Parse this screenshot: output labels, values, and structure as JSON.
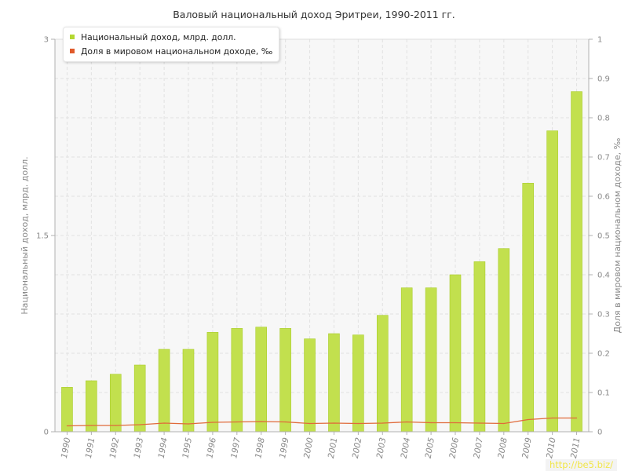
{
  "page": {
    "title": "Валовый национальный доход Эритреи, 1990-2011 гг.",
    "watermark": "http://be5.biz/"
  },
  "legend": [
    {
      "label": "Национальный доход, млрд. долл.",
      "color": "#b4d832"
    },
    {
      "label": "Доля в мировом национальном доходе, ‰",
      "color": "#e05a2b"
    }
  ],
  "colors": {
    "bar": "#c2e04e",
    "bar_edge": "#aacd2a",
    "line": "#e06a3a",
    "plot_bg": "#f7f7f7",
    "grid": "#e2e2e2"
  },
  "chart_data": {
    "type": "bar",
    "title": "Валовый национальный доход Эритреи, 1990-2011 гг.",
    "categories": [
      "1990",
      "1991",
      "1992",
      "1993",
      "1994",
      "1995",
      "1996",
      "1997",
      "1998",
      "1999",
      "2000",
      "2001",
      "2002",
      "2003",
      "2004",
      "2005",
      "2006",
      "2007",
      "2008",
      "2009",
      "2010",
      "2011"
    ],
    "series": [
      {
        "name": "Национальный доход, млрд. долл.",
        "type": "bar",
        "axis": "left",
        "values": [
          0.34,
          0.39,
          0.44,
          0.51,
          0.63,
          0.63,
          0.76,
          0.79,
          0.8,
          0.79,
          0.71,
          0.75,
          0.74,
          0.89,
          1.1,
          1.1,
          1.2,
          1.3,
          1.4,
          1.9,
          2.3,
          2.6
        ]
      },
      {
        "name": "Доля в мировом национальном доходе, ‰",
        "type": "line",
        "axis": "right",
        "values": [
          0.015,
          0.016,
          0.016,
          0.018,
          0.022,
          0.02,
          0.024,
          0.025,
          0.026,
          0.025,
          0.021,
          0.022,
          0.021,
          0.022,
          0.025,
          0.023,
          0.023,
          0.022,
          0.021,
          0.031,
          0.035,
          0.035
        ]
      }
    ],
    "ylabel": "Национальный доход, млрд. долл.",
    "ylabel_right": "Доля в мировом национальном доходе, ‰",
    "ylim": [
      0,
      3
    ],
    "ylim_right": [
      0,
      1
    ],
    "yticks": [
      "0",
      "1.5",
      "3"
    ],
    "yticks_right": [
      "0",
      "0.1",
      "0.2",
      "0.3",
      "0.4",
      "0.5",
      "0.6",
      "0.7",
      "0.8",
      "0.9",
      "1"
    ],
    "grid": true,
    "legend_position": "top-left"
  }
}
